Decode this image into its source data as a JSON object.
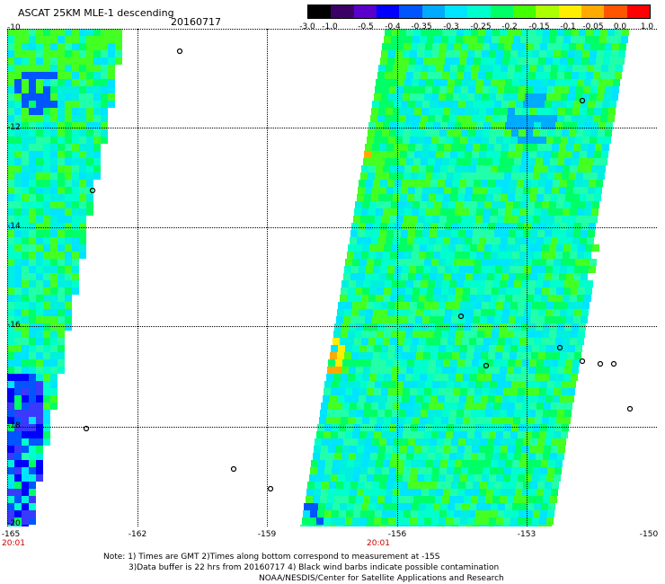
{
  "header": {
    "title": "ASCAT 25KM MLE-1 descending",
    "date": "20160717"
  },
  "colorbar": {
    "labels": [
      "-3.0",
      "-1.0",
      "-0.5",
      "-0.4",
      "-0.35",
      "-0.3",
      "-0.25",
      "-0.2",
      "-0.15",
      "-0.1",
      "-0.05",
      "0.0",
      "1.0"
    ],
    "colors": [
      "#000000",
      "#3a0066",
      "#5a00cc",
      "#0000ff",
      "#0055ff",
      "#00aaff",
      "#00e5ff",
      "#00ffcc",
      "#00ff66",
      "#44ff00",
      "#aaff00",
      "#ffee00",
      "#ffaa00",
      "#ff5500",
      "#ff0000"
    ]
  },
  "axes": {
    "lat_labels": [
      "-10",
      "-12",
      "-14",
      "-16",
      "-18",
      "-20"
    ],
    "lon_labels": [
      "-165",
      "-162",
      "-159",
      "-156",
      "-153",
      "-150"
    ]
  },
  "time_labels": [
    "20:01",
    "20:01"
  ],
  "notes": {
    "line1": "Note: 1) Times are GMT 2)Times along bottom correspond to measurement at -15S",
    "line2": "3)Data buffer is 22 hrs from 20160717 4) Black wind barbs indicate possible contamination",
    "line3": "NOAA/NESDIS/Center for Satellite Applications and Research"
  }
}
